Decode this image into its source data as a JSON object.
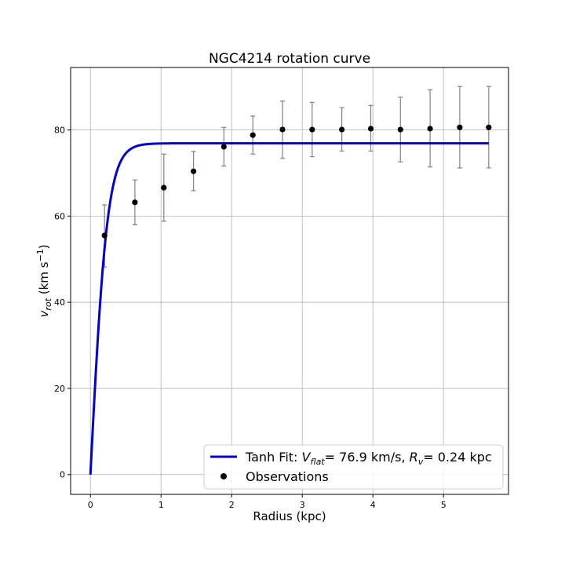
{
  "chart_data": {
    "type": "line",
    "title": "NGC4214 rotation curve",
    "xlabel": "Radius (kpc)",
    "ylabel": "v_rot (km s⁻¹)",
    "xlim": [
      -0.28,
      5.92
    ],
    "ylim": [
      -4.6,
      94.5
    ],
    "xticks": [
      0,
      1,
      2,
      3,
      4,
      5
    ],
    "yticks": [
      0,
      20,
      40,
      60,
      80
    ],
    "grid": true,
    "legend_position": "lower-right",
    "series": [
      {
        "name": "Tanh Fit: V_flat = 76.9 km/s, R_v = 0.24 kpc",
        "kind": "line",
        "color": "#0000dd",
        "model": "tanh",
        "params": {
          "V_flat": 76.9,
          "R_v": 0.24
        },
        "x_range": [
          0,
          5.64
        ]
      },
      {
        "name": "Observations",
        "kind": "errorbar",
        "color": "#000000",
        "errorbar_color": "#808080",
        "x": [
          0.2,
          0.63,
          1.04,
          1.46,
          1.89,
          2.3,
          2.72,
          3.14,
          3.56,
          3.97,
          4.39,
          4.81,
          5.23,
          5.64
        ],
        "y": [
          55.5,
          63.2,
          66.6,
          70.4,
          76.1,
          78.8,
          80.1,
          80.1,
          80.1,
          80.3,
          80.1,
          80.3,
          80.6,
          80.6
        ],
        "yerr_low": [
          48.2,
          58.0,
          58.8,
          65.9,
          71.6,
          74.4,
          73.4,
          73.8,
          75.1,
          75.1,
          72.6,
          71.4,
          71.2,
          71.2
        ],
        "yerr_high": [
          62.6,
          68.4,
          74.4,
          75.0,
          80.6,
          83.2,
          86.7,
          86.4,
          85.2,
          85.7,
          87.6,
          89.3,
          90.1,
          90.1
        ]
      }
    ],
    "legend": {
      "fit_prefix": "Tanh Fit: ",
      "fit_vflat_text": "V",
      "fit_vflat_sub": "flat",
      "fit_vflat_value": "= 76.9 km/s, ",
      "fit_rv_text": "R",
      "fit_rv_sub": "v",
      "fit_rv_value": "= 0.24 kpc",
      "obs_label": "Observations"
    },
    "ylabel_parts": {
      "v": "v",
      "sub": "rot",
      "unit": " (km s",
      "sup": "−1",
      "close": ")"
    }
  }
}
